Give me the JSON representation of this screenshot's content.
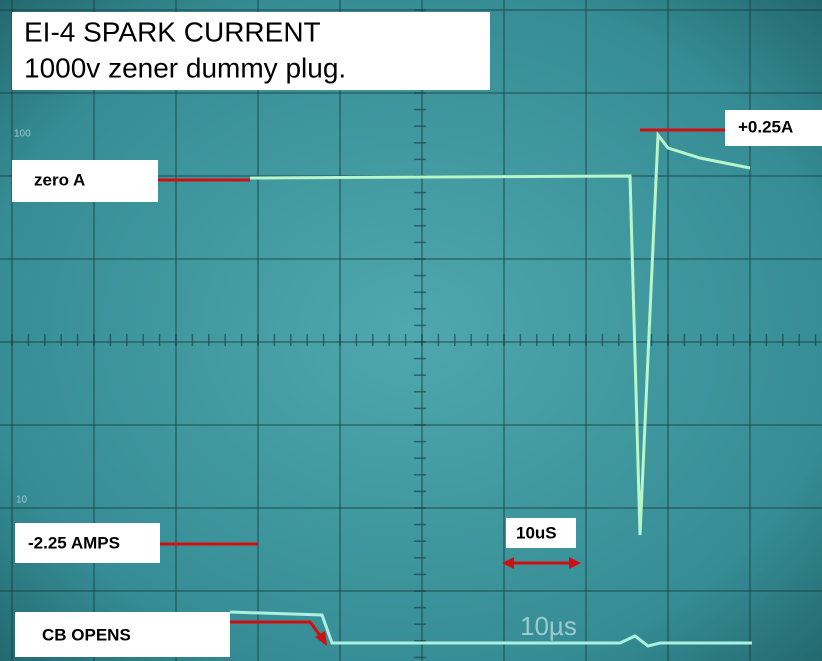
{
  "title": {
    "line1": "EI-4 SPARK CURRENT",
    "line2": "1000v zener dummy plug."
  },
  "annotations": {
    "zero": "zero A",
    "peak": "+0.25A",
    "min": "-2.25 AMPS",
    "timebase": "10uS",
    "cb": "CB OPENS"
  },
  "screen_labels": {
    "top": "100",
    "bottom": "10",
    "time": "10µs"
  }
}
